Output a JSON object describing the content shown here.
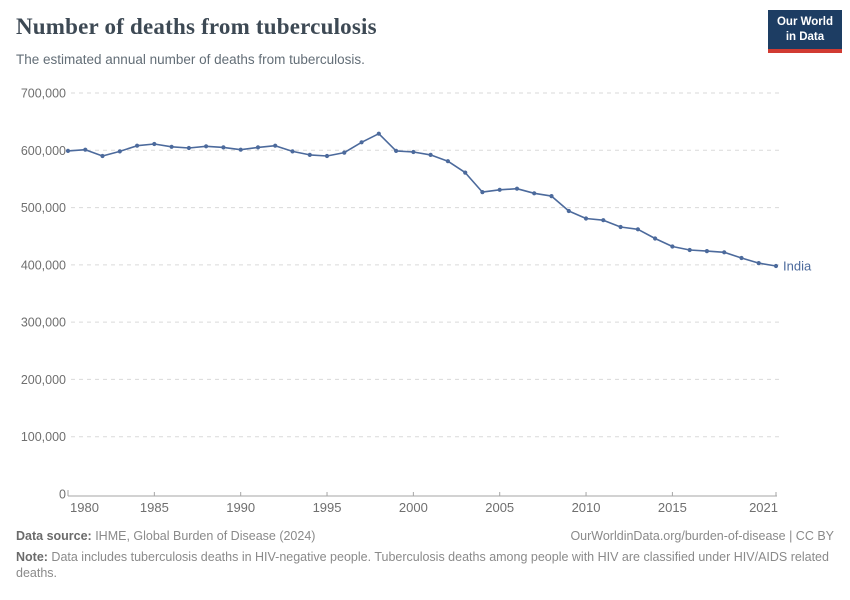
{
  "header": {
    "title": "Number of deaths from tuberculosis",
    "subtitle": "The estimated annual number of deaths from tuberculosis.",
    "logo": {
      "line1": "Our World",
      "line2": "in Data"
    }
  },
  "colors": {
    "line": "#4C6A9C",
    "logo_bg": "#1D3D63",
    "logo_red": "#D13B32"
  },
  "chart_data": {
    "type": "line",
    "title": "Number of deaths from tuberculosis",
    "subtitle": "The estimated annual number of deaths from tuberculosis.",
    "xlabel": "",
    "ylabel": "",
    "xlim": [
      1980,
      2021
    ],
    "ylim": [
      0,
      700000
    ],
    "grid": "horizontal-dashed",
    "legend_position": "end-of-line-label",
    "x": [
      1980,
      1981,
      1982,
      1983,
      1984,
      1985,
      1986,
      1987,
      1988,
      1989,
      1990,
      1991,
      1992,
      1993,
      1994,
      1995,
      1996,
      1997,
      1998,
      1999,
      2000,
      2001,
      2002,
      2003,
      2004,
      2005,
      2006,
      2007,
      2008,
      2009,
      2010,
      2011,
      2012,
      2013,
      2014,
      2015,
      2016,
      2017,
      2018,
      2019,
      2020,
      2021
    ],
    "series": [
      {
        "name": "India",
        "color": "#4C6A9C",
        "values": [
          599000,
          601000,
          590000,
          598000,
          608000,
          611000,
          606000,
          604000,
          607000,
          605000,
          601000,
          605000,
          608000,
          598000,
          592000,
          590000,
          596000,
          614000,
          629000,
          599000,
          597000,
          592000,
          581000,
          561000,
          527000,
          531000,
          533000,
          525000,
          520000,
          494000,
          481000,
          478000,
          466000,
          462000,
          446000,
          432000,
          426000,
          424000,
          422000,
          412000,
          403000,
          398000
        ]
      }
    ],
    "end_label": "India",
    "yticks": [
      0,
      100000,
      200000,
      300000,
      400000,
      500000,
      600000,
      700000
    ],
    "ytick_labels": [
      "0",
      "100,000",
      "200,000",
      "300,000",
      "400,000",
      "500,000",
      "600,000",
      "700,000"
    ],
    "xticks": [
      1980,
      1985,
      1990,
      1995,
      2000,
      2005,
      2010,
      2015,
      2021
    ],
    "xtick_labels": [
      "1980",
      "1985",
      "1990",
      "1995",
      "2000",
      "2005",
      "2010",
      "2015",
      "2021"
    ]
  },
  "footer": {
    "source_label": "Data source:",
    "source_text": " IHME, Global Burden of Disease (2024)",
    "link_text": "OurWorldinData.org/burden-of-disease | CC BY",
    "note_label": "Note:",
    "note_text": " Data includes tuberculosis deaths in HIV-negative people. Tuberculosis deaths among people with HIV are classified under HIV/AIDS related deaths."
  }
}
